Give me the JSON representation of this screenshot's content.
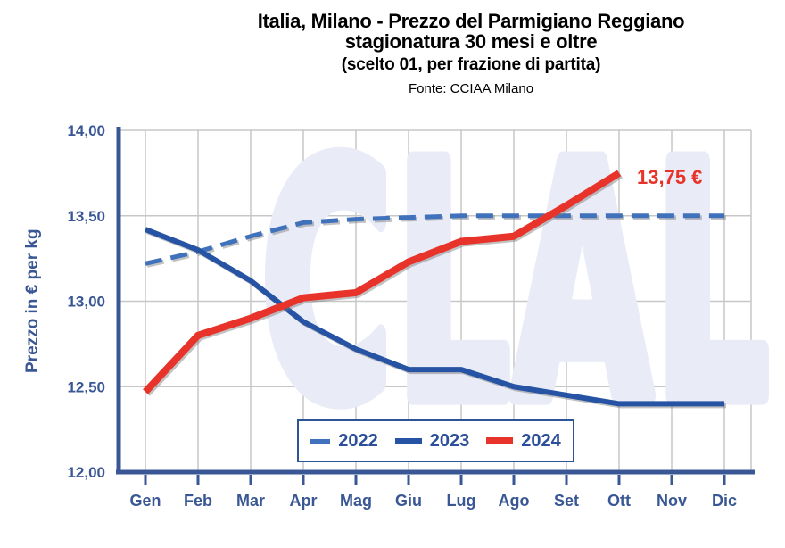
{
  "header": {
    "title_line1": "Italia, Milano - Prezzo del Parmigiano Reggiano",
    "title_line2": "stagionatura 30 mesi e oltre",
    "subtitle": "(scelto 01, per frazione di partita)",
    "source": "Fonte: CCIAA Milano"
  },
  "watermark": {
    "text": "CLAL",
    "color": "#E9EBF7"
  },
  "annotation": {
    "text": "13,75 €",
    "color": "#E8332A",
    "series": "2024",
    "month": "Ott",
    "value": 13.75
  },
  "chart_data": {
    "type": "line",
    "title": "Italia, Milano - Prezzo del Parmigiano Reggiano stagionatura 30 mesi e oltre",
    "subtitle": "(scelto 01, per frazione di partita)",
    "source": "Fonte: CCIAA Milano",
    "xlabel": "",
    "ylabel": "Prezzo in € per kg",
    "x_labels": [
      "Gen",
      "Feb",
      "Mar",
      "Apr",
      "Mag",
      "Giu",
      "Lug",
      "Ago",
      "Set",
      "Ott",
      "Nov",
      "Dic"
    ],
    "ylim": [
      12.0,
      14.0
    ],
    "yticks": [
      12.0,
      12.5,
      13.0,
      13.5,
      14.0
    ],
    "ytick_labels": [
      "12,00",
      "12,50",
      "13,00",
      "13,50",
      "14,00"
    ],
    "grid": true,
    "legend_position": "bottom-center-inside",
    "series": [
      {
        "name": "2022",
        "style": "dashed",
        "color": "#4072BC",
        "width": 5,
        "values": [
          13.22,
          13.29,
          13.38,
          13.46,
          13.48,
          13.49,
          13.5,
          13.5,
          13.5,
          13.5,
          13.5,
          13.5
        ]
      },
      {
        "name": "2023",
        "style": "solid",
        "color": "#2653A3",
        "width": 6,
        "values": [
          13.42,
          13.3,
          13.12,
          12.88,
          12.72,
          12.6,
          12.6,
          12.5,
          12.45,
          12.4,
          12.4,
          12.4
        ]
      },
      {
        "name": "2024",
        "style": "solid",
        "color": "#E8332A",
        "width": 8,
        "values": [
          12.47,
          12.8,
          12.9,
          13.02,
          13.05,
          13.23,
          13.35,
          13.38,
          13.56,
          13.75,
          null,
          null
        ]
      }
    ]
  }
}
